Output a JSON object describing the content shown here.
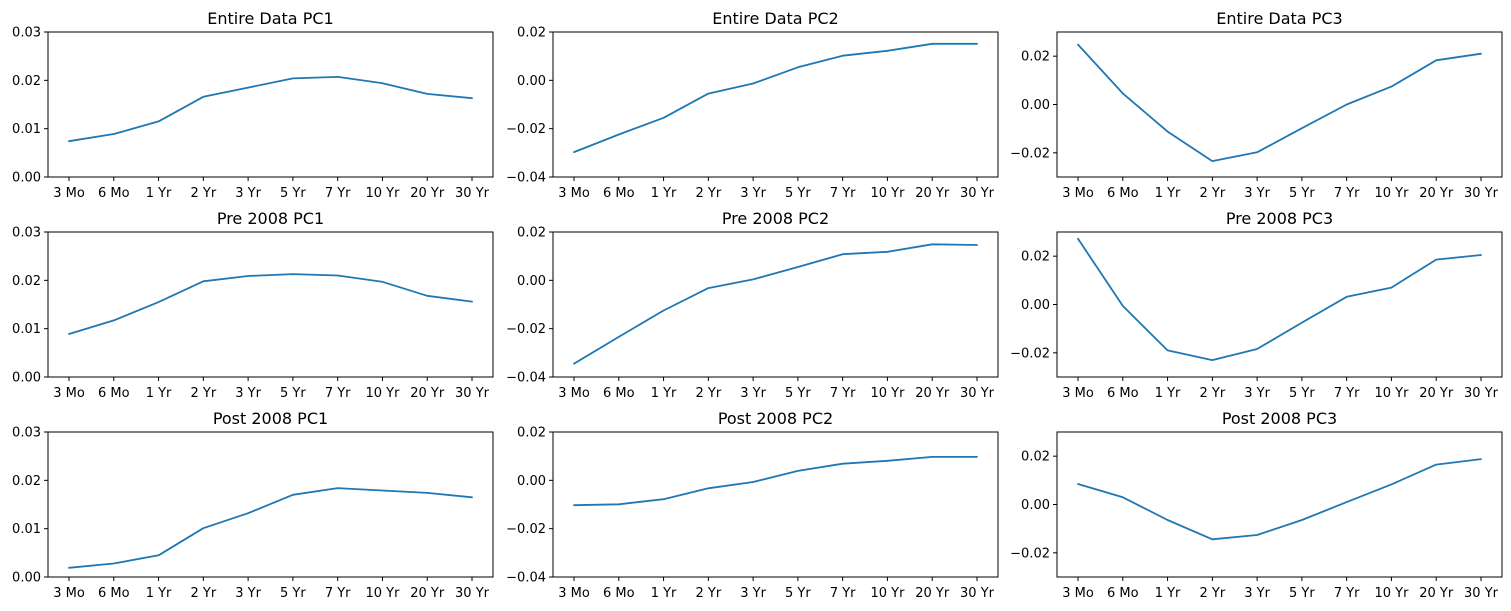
{
  "style": {
    "line_color": "#1f77b4"
  },
  "chart_data": [
    {
      "type": "line",
      "title": "Entire Data PC1",
      "categories": [
        "3 Mo",
        "6 Mo",
        "1 Yr",
        "2 Yr",
        "3 Yr",
        "5 Yr",
        "7 Yr",
        "10 Yr",
        "20 Yr",
        "30 Yr"
      ],
      "values": [
        0.0074,
        0.0089,
        0.0115,
        0.0166,
        0.0185,
        0.0204,
        0.0207,
        0.0194,
        0.0172,
        0.0163
      ],
      "ylim": [
        0.0,
        0.03
      ],
      "yticks": [
        "0.00",
        "0.01",
        "0.02",
        "0.03"
      ],
      "ytick_values": [
        0.0,
        0.01,
        0.02,
        0.03
      ]
    },
    {
      "type": "line",
      "title": "Entire Data PC2",
      "categories": [
        "3 Mo",
        "6 Mo",
        "1 Yr",
        "2 Yr",
        "3 Yr",
        "5 Yr",
        "7 Yr",
        "10 Yr",
        "20 Yr",
        "30 Yr"
      ],
      "values": [
        -0.0297,
        -0.0224,
        -0.0155,
        -0.0055,
        -0.0013,
        0.0054,
        0.0102,
        0.0122,
        0.0151,
        0.0151
      ],
      "ylim": [
        -0.04,
        0.02
      ],
      "yticks": [
        "−0.04",
        "−0.02",
        "0.00",
        "0.02"
      ],
      "ytick_values": [
        -0.04,
        -0.02,
        0.0,
        0.02
      ]
    },
    {
      "type": "line",
      "title": "Entire Data PC3",
      "categories": [
        "3 Mo",
        "6 Mo",
        "1 Yr",
        "2 Yr",
        "3 Yr",
        "5 Yr",
        "7 Yr",
        "10 Yr",
        "20 Yr",
        "30 Yr"
      ],
      "values": [
        0.0248,
        0.0046,
        -0.0112,
        -0.0234,
        -0.0198,
        -0.0098,
        0.0,
        0.0074,
        0.0183,
        0.021
      ],
      "ylim": [
        -0.03,
        0.03
      ],
      "yticks": [
        "−0.02",
        "0.00",
        "0.02"
      ],
      "ytick_values": [
        -0.02,
        0.0,
        0.02
      ]
    },
    {
      "type": "line",
      "title": "Pre 2008 PC1",
      "categories": [
        "3 Mo",
        "6 Mo",
        "1 Yr",
        "2 Yr",
        "3 Yr",
        "5 Yr",
        "7 Yr",
        "10 Yr",
        "20 Yr",
        "30 Yr"
      ],
      "values": [
        0.0089,
        0.0117,
        0.0155,
        0.0198,
        0.0209,
        0.0213,
        0.021,
        0.0197,
        0.0168,
        0.0156
      ],
      "ylim": [
        0.0,
        0.03
      ],
      "yticks": [
        "0.00",
        "0.01",
        "0.02",
        "0.03"
      ],
      "ytick_values": [
        0.0,
        0.01,
        0.02,
        0.03
      ]
    },
    {
      "type": "line",
      "title": "Pre 2008 PC2",
      "categories": [
        "3 Mo",
        "6 Mo",
        "1 Yr",
        "2 Yr",
        "3 Yr",
        "5 Yr",
        "7 Yr",
        "10 Yr",
        "20 Yr",
        "30 Yr"
      ],
      "values": [
        -0.0345,
        -0.0234,
        -0.0125,
        -0.0032,
        0.0004,
        0.0055,
        0.0108,
        0.0118,
        0.0149,
        0.0146
      ],
      "ylim": [
        -0.04,
        0.02
      ],
      "yticks": [
        "−0.04",
        "−0.02",
        "0.00",
        "0.02"
      ],
      "ytick_values": [
        -0.04,
        -0.02,
        0.0,
        0.02
      ]
    },
    {
      "type": "line",
      "title": "Pre 2008 PC3",
      "categories": [
        "3 Mo",
        "6 Mo",
        "1 Yr",
        "2 Yr",
        "3 Yr",
        "5 Yr",
        "7 Yr",
        "10 Yr",
        "20 Yr",
        "30 Yr"
      ],
      "values": [
        0.0272,
        -0.0006,
        -0.019,
        -0.023,
        -0.0184,
        -0.0075,
        0.0032,
        0.007,
        0.0186,
        0.0205
      ],
      "ylim": [
        -0.03,
        0.03
      ],
      "yticks": [
        "−0.02",
        "0.00",
        "0.02"
      ],
      "ytick_values": [
        -0.02,
        0.0,
        0.02
      ]
    },
    {
      "type": "line",
      "title": "Post 2008 PC1",
      "categories": [
        "3 Mo",
        "6 Mo",
        "1 Yr",
        "2 Yr",
        "3 Yr",
        "5 Yr",
        "7 Yr",
        "10 Yr",
        "20 Yr",
        "30 Yr"
      ],
      "values": [
        0.0019,
        0.0028,
        0.0045,
        0.0101,
        0.0132,
        0.017,
        0.0184,
        0.0179,
        0.0174,
        0.0165
      ],
      "ylim": [
        0.0,
        0.03
      ],
      "yticks": [
        "0.00",
        "0.01",
        "0.02",
        "0.03"
      ],
      "ytick_values": [
        0.0,
        0.01,
        0.02,
        0.03
      ]
    },
    {
      "type": "line",
      "title": "Post 2008 PC2",
      "categories": [
        "3 Mo",
        "6 Mo",
        "1 Yr",
        "2 Yr",
        "3 Yr",
        "5 Yr",
        "7 Yr",
        "10 Yr",
        "20 Yr",
        "30 Yr"
      ],
      "values": [
        -0.0103,
        -0.0099,
        -0.0078,
        -0.0033,
        -0.0007,
        0.0039,
        0.0069,
        0.0081,
        0.0097,
        0.0097
      ],
      "ylim": [
        -0.04,
        0.02
      ],
      "yticks": [
        "−0.04",
        "−0.02",
        "0.00",
        "0.02"
      ],
      "ytick_values": [
        -0.04,
        -0.02,
        0.0,
        0.02
      ]
    },
    {
      "type": "line",
      "title": "Post 2008 PC3",
      "categories": [
        "3 Mo",
        "6 Mo",
        "1 Yr",
        "2 Yr",
        "3 Yr",
        "5 Yr",
        "7 Yr",
        "10 Yr",
        "20 Yr",
        "30 Yr"
      ],
      "values": [
        0.0085,
        0.003,
        -0.0064,
        -0.0144,
        -0.0126,
        -0.0064,
        0.001,
        0.0083,
        0.0165,
        0.0188
      ],
      "ylim": [
        -0.03,
        0.03
      ],
      "yticks": [
        "−0.02",
        "0.00",
        "0.02"
      ],
      "ytick_values": [
        -0.02,
        0.0,
        0.02
      ]
    }
  ]
}
